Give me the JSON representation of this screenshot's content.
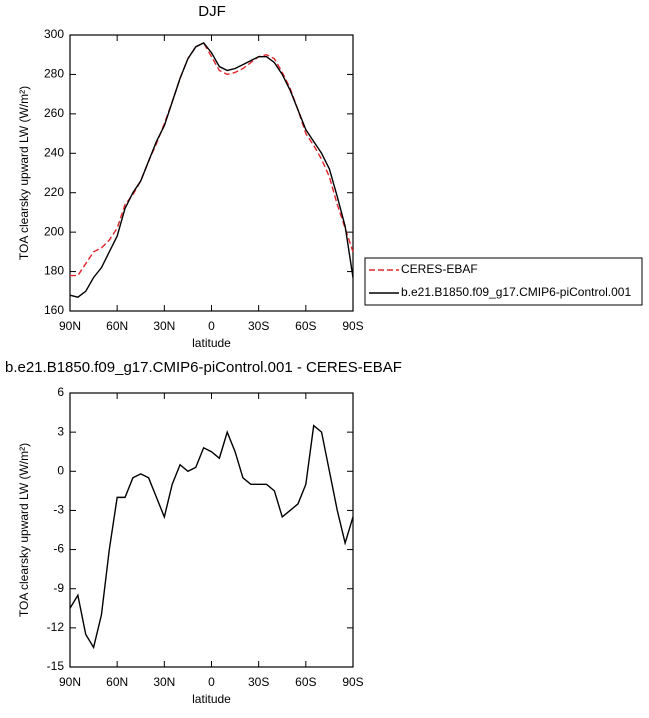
{
  "chart_data": [
    {
      "type": "line",
      "title": "DJF",
      "xlabel": "latitude",
      "ylabel": "TOA clearsky upward LW (W/m²)",
      "x": [
        90,
        85,
        80,
        75,
        70,
        65,
        60,
        55,
        50,
        45,
        40,
        35,
        30,
        25,
        20,
        15,
        10,
        5,
        0,
        -5,
        -10,
        -15,
        -20,
        -25,
        -30,
        -35,
        -40,
        -45,
        -50,
        -55,
        -60,
        -65,
        -70,
        -75,
        -80,
        -85,
        -90
      ],
      "xlim": [
        90,
        -90
      ],
      "xticks": [
        {
          "value": 90,
          "label": "90N"
        },
        {
          "value": 60,
          "label": "60N"
        },
        {
          "value": 30,
          "label": "30N"
        },
        0,
        {
          "value": -30,
          "label": "30S"
        },
        {
          "value": -60,
          "label": "60S"
        },
        {
          "value": -90,
          "label": "90S"
        }
      ],
      "ylim": [
        160,
        300
      ],
      "yticks": [
        160,
        180,
        200,
        220,
        240,
        260,
        280,
        300
      ],
      "legend": "right",
      "series": [
        {
          "name": "CERES-EBAF",
          "color": "#e0262b",
          "line_style": "dashed",
          "values": [
            178,
            178,
            184,
            190,
            192,
            196,
            202,
            214,
            219,
            226,
            236,
            245,
            255,
            266,
            278,
            288,
            294,
            296,
            289,
            282,
            280,
            281,
            283,
            286,
            289,
            290,
            288,
            281,
            273,
            262,
            250,
            244,
            237,
            228,
            214,
            202,
            190
          ]
        },
        {
          "name": "b.e21.B1850.f09_g17.CMIP6-piControl.001",
          "color": "#000000",
          "line_style": "solid",
          "values": [
            168,
            167,
            170,
            177,
            182,
            190,
            198,
            212,
            220,
            226,
            236,
            246,
            254,
            266,
            278,
            288,
            294,
            296,
            291,
            284,
            282,
            283,
            285,
            287,
            289,
            289,
            286,
            280,
            272,
            262,
            252,
            246,
            240,
            232,
            218,
            203,
            177
          ]
        }
      ]
    },
    {
      "type": "line",
      "title": "b.e21.B1850.f09_g17.CMIP6-piControl.001 - CERES-EBAF",
      "xlabel": "latitude",
      "ylabel": "TOA clearsky upward LW (W/m²)",
      "x": [
        90,
        85,
        80,
        75,
        70,
        65,
        60,
        55,
        50,
        45,
        40,
        35,
        30,
        25,
        20,
        15,
        10,
        5,
        0,
        -5,
        -10,
        -15,
        -20,
        -25,
        -30,
        -35,
        -40,
        -45,
        -50,
        -55,
        -60,
        -65,
        -70,
        -75,
        -80,
        -85,
        -90
      ],
      "xlim": [
        90,
        -90
      ],
      "xticks": [
        {
          "value": 90,
          "label": "90N"
        },
        {
          "value": 60,
          "label": "60N"
        },
        {
          "value": 30,
          "label": "30N"
        },
        0,
        {
          "value": -30,
          "label": "30S"
        },
        {
          "value": -60,
          "label": "60S"
        },
        {
          "value": -90,
          "label": "90S"
        }
      ],
      "ylim": [
        -15,
        6
      ],
      "yticks": [
        -15,
        -12,
        -9,
        -6,
        -3,
        0,
        3,
        6
      ],
      "series": [
        {
          "color": "#000000",
          "line_style": "solid",
          "values": [
            -10.5,
            -9.5,
            -12.5,
            -13.5,
            -11,
            -6,
            -2,
            -2,
            -0.5,
            -0.2,
            -0.5,
            -2,
            -3.5,
            -1,
            0.5,
            0,
            0.3,
            1.8,
            1.5,
            1,
            3,
            1.5,
            -0.5,
            -1,
            -1,
            -1,
            -1.5,
            -3.5,
            -3,
            -2.5,
            -1,
            3.5,
            3,
            0,
            -3,
            -5.5,
            -3.5
          ]
        }
      ]
    }
  ]
}
